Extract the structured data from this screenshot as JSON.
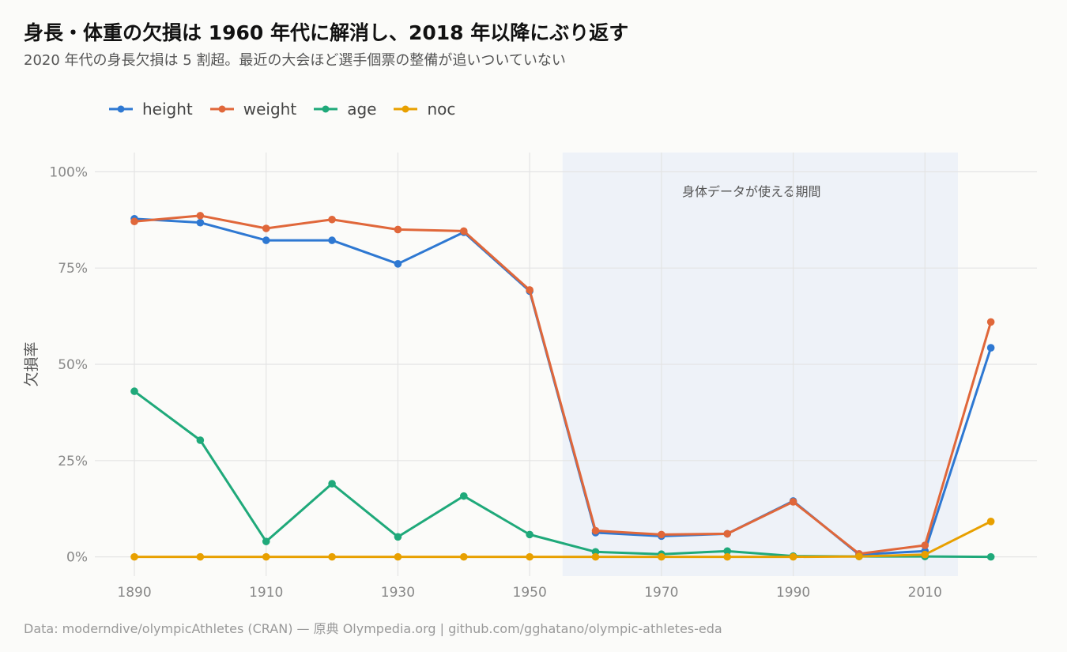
{
  "title": "身長・体重の欠損は 1960 年代に解消し、2018 年以降にぶり返す",
  "subtitle": "2020 年代の身長欠損は 5 割超。最近の大会ほど選手個票の整備が追いついていない",
  "caption": "Data: moderndive/olympicAthletes (CRAN) — 原典 Olympedia.org | github.com/gghatano/olympic-athletes-eda",
  "colors": {
    "height": "#2e78d2",
    "weight": "#e0673a",
    "age": "#1fa97a",
    "noc": "#e8a000",
    "band": "#eef2f8",
    "grid": "#e4e4e4"
  },
  "chart_data": {
    "type": "line",
    "title": "身長・体重の欠損は 1960 年代に解消し、2018 年以降にぶり返す",
    "xlabel": "",
    "ylabel": "欠損率",
    "x": [
      1890,
      1900,
      1910,
      1920,
      1930,
      1940,
      1950,
      1960,
      1970,
      1980,
      1990,
      2000,
      2010,
      2020
    ],
    "xlim": [
      1884,
      2027
    ],
    "ylim": [
      -0.05,
      1.05
    ],
    "x_ticks": [
      1890,
      1910,
      1930,
      1950,
      1970,
      1990,
      2010
    ],
    "x_tick_labels": [
      "1890",
      "1910",
      "1930",
      "1950",
      "1970",
      "1990",
      "2010"
    ],
    "y_ticks": [
      0,
      0.25,
      0.5,
      0.75,
      1.0
    ],
    "y_tick_labels": [
      "0%",
      "25%",
      "50%",
      "75%",
      "100%"
    ],
    "grid": true,
    "legend_position": "top-left",
    "series": [
      {
        "name": "height",
        "values": [
          0.878,
          0.868,
          0.822,
          0.822,
          0.761,
          0.843,
          0.69,
          0.063,
          0.054,
          0.06,
          0.145,
          0.006,
          0.015,
          0.543
        ]
      },
      {
        "name": "weight",
        "values": [
          0.871,
          0.886,
          0.853,
          0.876,
          0.85,
          0.846,
          0.693,
          0.068,
          0.058,
          0.06,
          0.143,
          0.008,
          0.03,
          0.61
        ]
      },
      {
        "name": "age",
        "values": [
          0.43,
          0.303,
          0.04,
          0.19,
          0.052,
          0.158,
          0.058,
          0.013,
          0.007,
          0.015,
          0.002,
          0.001,
          0.001,
          0.0
        ]
      },
      {
        "name": "noc",
        "values": [
          0.0,
          0.0,
          0.0,
          0.0,
          0.0,
          0.0,
          0.0,
          0.0,
          0.0,
          0.0,
          0.0,
          0.001,
          0.006,
          0.092
        ]
      }
    ],
    "highlight_band": {
      "x_start": 1955,
      "x_end": 2015,
      "label": "身体データが使える期間"
    }
  }
}
